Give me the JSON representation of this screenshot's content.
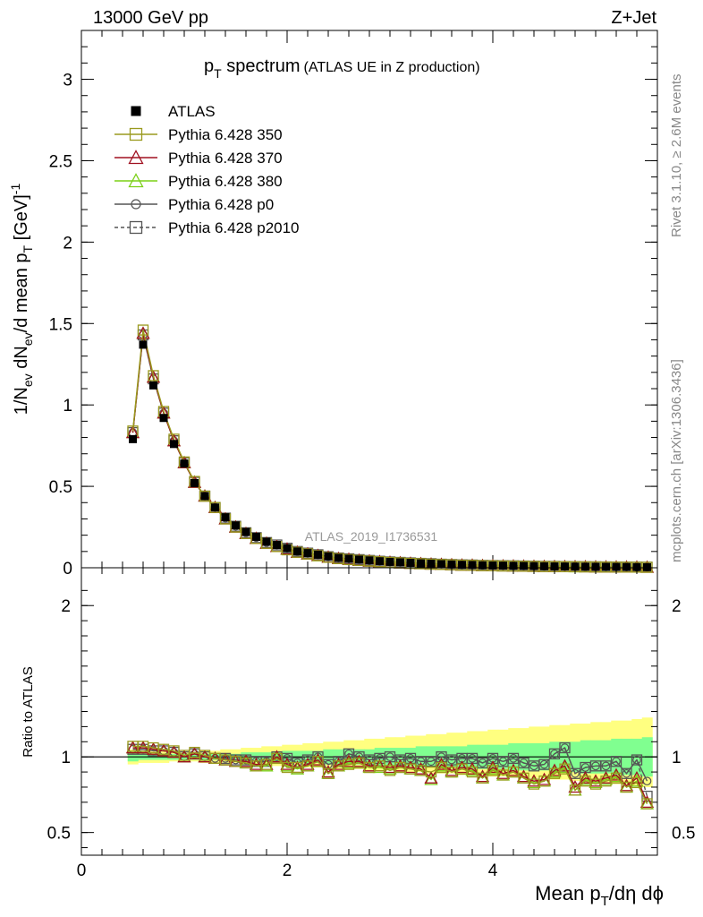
{
  "header": {
    "left": "13000 GeV pp",
    "right": "Z+Jet"
  },
  "side_labels": {
    "rivet": "Rivet 3.1.10, ≥ 2.6M events",
    "mcplots": "mcplots.cern.ch [arXiv:1306.3436]"
  },
  "chart_data": [
    {
      "type": "scatter",
      "title_main": "p",
      "title_sub": "T",
      "title_rest": " spectrum",
      "title_note": "(ATLAS UE in Z production)",
      "watermark": "ATLAS_2019_I1736531",
      "ylabel": "1/N_ev dN_ev/d mean p_T [GeV]^-1",
      "xlim": [
        0,
        5.6
      ],
      "ylim": [
        0,
        3.3
      ],
      "yticks": [
        "0",
        "0.5",
        "1",
        "1.5",
        "2",
        "2.5",
        "3"
      ],
      "x": [
        0.5,
        0.6,
        0.7,
        0.8,
        0.9,
        1.0,
        1.1,
        1.2,
        1.3,
        1.4,
        1.5,
        1.6,
        1.7,
        1.8,
        1.9,
        2.0,
        2.1,
        2.2,
        2.3,
        2.4,
        2.5,
        2.6,
        2.7,
        2.8,
        2.9,
        3.0,
        3.1,
        3.2,
        3.3,
        3.4,
        3.5,
        3.6,
        3.7,
        3.8,
        3.9,
        4.0,
        4.1,
        4.2,
        4.3,
        4.4,
        4.5,
        4.6,
        4.7,
        4.8,
        4.9,
        5.0,
        5.1,
        5.2,
        5.3,
        5.4,
        5.5
      ],
      "series": [
        {
          "name": "ATLAS",
          "marker": "filled-square",
          "color": "#000000",
          "values": [
            0.79,
            1.37,
            1.12,
            0.92,
            0.76,
            0.64,
            0.52,
            0.44,
            0.37,
            0.31,
            0.26,
            0.22,
            0.19,
            0.16,
            0.14,
            0.12,
            0.1,
            0.09,
            0.08,
            0.07,
            0.06,
            0.055,
            0.05,
            0.045,
            0.04,
            0.036,
            0.033,
            0.03,
            0.027,
            0.025,
            0.022,
            0.02,
            0.018,
            0.017,
            0.015,
            0.014,
            0.013,
            0.012,
            0.011,
            0.01,
            0.009,
            0.008,
            0.0075,
            0.007,
            0.0065,
            0.006,
            0.0055,
            0.005,
            0.0045,
            0.004,
            0.0035
          ]
        },
        {
          "name": "Pythia 6.428 350",
          "marker": "open-square",
          "color": "#9a9a1e",
          "values": [
            0.84,
            1.46,
            1.18,
            0.96,
            0.79,
            0.65,
            0.53,
            0.44,
            0.37,
            0.3,
            0.25,
            0.21,
            0.18,
            0.15,
            0.13,
            0.11,
            0.095,
            0.085,
            0.074,
            0.064,
            0.056,
            0.05,
            0.045,
            0.041,
            0.037,
            0.033,
            0.03,
            0.027,
            0.025,
            0.022,
            0.02,
            0.018,
            0.016,
            0.015,
            0.013,
            0.012,
            0.011,
            0.0105,
            0.0095,
            0.0085,
            0.0075,
            0.007,
            0.0065,
            0.006,
            0.0055,
            0.005,
            0.0046,
            0.0042,
            0.0038,
            0.0034,
            0.003
          ]
        },
        {
          "name": "Pythia 6.428 370",
          "marker": "open-triangle",
          "color": "#a01020",
          "values": [
            0.83,
            1.44,
            1.17,
            0.95,
            0.78,
            0.645,
            0.525,
            0.44,
            0.37,
            0.3,
            0.25,
            0.21,
            0.18,
            0.15,
            0.13,
            0.115,
            0.095,
            0.085,
            0.075,
            0.065,
            0.057,
            0.052,
            0.046,
            0.041,
            0.037,
            0.033,
            0.03,
            0.027,
            0.025,
            0.022,
            0.02,
            0.018,
            0.016,
            0.015,
            0.013,
            0.012,
            0.011,
            0.0105,
            0.0095,
            0.0085,
            0.0077,
            0.0072,
            0.0067,
            0.006,
            0.0057,
            0.0052,
            0.0048,
            0.0044,
            0.004,
            0.0036,
            0.0031
          ]
        },
        {
          "name": "Pythia 6.428 380",
          "marker": "open-triangle",
          "color": "#7bd017",
          "values": [
            0.83,
            1.44,
            1.17,
            0.95,
            0.78,
            0.645,
            0.525,
            0.44,
            0.37,
            0.3,
            0.25,
            0.21,
            0.18,
            0.15,
            0.13,
            0.113,
            0.094,
            0.084,
            0.074,
            0.064,
            0.056,
            0.051,
            0.045,
            0.041,
            0.037,
            0.033,
            0.03,
            0.027,
            0.025,
            0.022,
            0.02,
            0.018,
            0.016,
            0.015,
            0.013,
            0.012,
            0.011,
            0.0103,
            0.0093,
            0.0083,
            0.0075,
            0.007,
            0.0065,
            0.0058,
            0.0055,
            0.005,
            0.0046,
            0.0042,
            0.0038,
            0.0034,
            0.003
          ]
        },
        {
          "name": "Pythia 6.428 p0",
          "marker": "open-circle",
          "color": "#555555",
          "values": [
            0.83,
            1.43,
            1.16,
            0.95,
            0.78,
            0.645,
            0.525,
            0.44,
            0.37,
            0.305,
            0.255,
            0.215,
            0.185,
            0.155,
            0.14,
            0.12,
            0.1,
            0.09,
            0.08,
            0.068,
            0.06,
            0.055,
            0.05,
            0.045,
            0.04,
            0.036,
            0.033,
            0.03,
            0.027,
            0.025,
            0.022,
            0.02,
            0.018,
            0.017,
            0.015,
            0.014,
            0.013,
            0.012,
            0.011,
            0.01,
            0.009,
            0.0085,
            0.0075,
            0.0068,
            0.0063,
            0.006,
            0.0055,
            0.0049,
            0.0044,
            0.004,
            0.0035
          ]
        },
        {
          "name": "Pythia 6.428 p2010",
          "marker": "open-square-dashed",
          "color": "#555555",
          "values": [
            0.83,
            1.43,
            1.16,
            0.95,
            0.78,
            0.645,
            0.525,
            0.44,
            0.37,
            0.305,
            0.255,
            0.215,
            0.185,
            0.155,
            0.14,
            0.12,
            0.1,
            0.09,
            0.08,
            0.068,
            0.06,
            0.055,
            0.05,
            0.045,
            0.04,
            0.036,
            0.033,
            0.03,
            0.027,
            0.025,
            0.022,
            0.02,
            0.018,
            0.017,
            0.015,
            0.014,
            0.013,
            0.012,
            0.011,
            0.01,
            0.009,
            0.0085,
            0.0075,
            0.0068,
            0.0063,
            0.006,
            0.0055,
            0.0049,
            0.0044,
            0.004,
            0.0035
          ]
        }
      ]
    },
    {
      "type": "scatter",
      "ylabel": "Ratio to ATLAS",
      "xlabel": "Mean p_T/dη dϕ",
      "xlim": [
        0,
        5.6
      ],
      "ylim": [
        0.35,
        2.25
      ],
      "xticks": [
        "0",
        "2",
        "4"
      ],
      "yticks": [
        "0.5",
        "1",
        "2"
      ],
      "x": [
        0.5,
        0.6,
        0.7,
        0.8,
        0.9,
        1.0,
        1.1,
        1.2,
        1.3,
        1.4,
        1.5,
        1.6,
        1.7,
        1.8,
        1.9,
        2.0,
        2.1,
        2.2,
        2.3,
        2.4,
        2.5,
        2.6,
        2.7,
        2.8,
        2.9,
        3.0,
        3.1,
        3.2,
        3.3,
        3.4,
        3.5,
        3.6,
        3.7,
        3.8,
        3.9,
        4.0,
        4.1,
        4.2,
        4.3,
        4.4,
        4.5,
        4.6,
        4.7,
        4.8,
        4.9,
        5.0,
        5.1,
        5.2,
        5.3,
        5.4,
        5.5
      ],
      "bands": [
        {
          "name": "stat+syst",
          "color": "#ffff80",
          "lo": [
            0.95,
            0.96,
            0.96,
            0.96,
            0.97,
            0.97,
            0.97,
            0.96,
            0.96,
            0.96,
            0.96,
            0.95,
            0.95,
            0.95,
            0.94,
            0.94,
            0.94,
            0.93,
            0.93,
            0.93,
            0.92,
            0.92,
            0.92,
            0.91,
            0.91,
            0.91,
            0.9,
            0.9,
            0.9,
            0.89,
            0.89,
            0.89,
            0.88,
            0.88,
            0.88,
            0.87,
            0.87,
            0.87,
            0.86,
            0.86,
            0.86,
            0.85,
            0.85,
            0.84,
            0.84,
            0.83,
            0.83,
            0.82,
            0.82,
            0.81,
            0.8
          ],
          "hi": [
            1.05,
            1.04,
            1.04,
            1.04,
            1.03,
            1.03,
            1.03,
            1.04,
            1.04,
            1.05,
            1.05,
            1.06,
            1.06,
            1.07,
            1.07,
            1.08,
            1.08,
            1.09,
            1.09,
            1.1,
            1.1,
            1.11,
            1.11,
            1.12,
            1.12,
            1.13,
            1.13,
            1.14,
            1.14,
            1.15,
            1.15,
            1.16,
            1.16,
            1.17,
            1.17,
            1.18,
            1.18,
            1.19,
            1.19,
            1.2,
            1.2,
            1.21,
            1.21,
            1.22,
            1.22,
            1.23,
            1.23,
            1.24,
            1.24,
            1.25,
            1.26
          ]
        },
        {
          "name": "stat",
          "color": "#80ff90",
          "lo": [
            0.97,
            0.98,
            0.98,
            0.98,
            0.98,
            0.98,
            0.98,
            0.98,
            0.98,
            0.98,
            0.98,
            0.97,
            0.97,
            0.97,
            0.97,
            0.96,
            0.96,
            0.96,
            0.96,
            0.95,
            0.95,
            0.95,
            0.95,
            0.95,
            0.94,
            0.94,
            0.94,
            0.94,
            0.93,
            0.93,
            0.93,
            0.93,
            0.93,
            0.92,
            0.92,
            0.92,
            0.92,
            0.91,
            0.91,
            0.91,
            0.91,
            0.9,
            0.9,
            0.9,
            0.89,
            0.89,
            0.89,
            0.88,
            0.88,
            0.88,
            0.87
          ],
          "hi": [
            1.03,
            1.02,
            1.02,
            1.02,
            1.02,
            1.02,
            1.02,
            1.02,
            1.02,
            1.02,
            1.02,
            1.03,
            1.03,
            1.03,
            1.03,
            1.04,
            1.04,
            1.04,
            1.04,
            1.05,
            1.05,
            1.05,
            1.05,
            1.05,
            1.06,
            1.06,
            1.06,
            1.06,
            1.07,
            1.07,
            1.07,
            1.07,
            1.07,
            1.08,
            1.08,
            1.08,
            1.08,
            1.09,
            1.09,
            1.09,
            1.09,
            1.1,
            1.1,
            1.1,
            1.11,
            1.11,
            1.11,
            1.12,
            1.12,
            1.12,
            1.13
          ]
        }
      ],
      "series": [
        {
          "name": "Pythia 6.428 350",
          "marker": "open-square",
          "color": "#9a9a1e",
          "values": [
            1.07,
            1.07,
            1.06,
            1.05,
            1.04,
            1.01,
            1.03,
            1.01,
            0.99,
            0.98,
            0.97,
            0.96,
            0.94,
            0.95,
            0.99,
            0.93,
            0.93,
            0.94,
            0.97,
            0.89,
            0.94,
            0.95,
            0.96,
            0.93,
            0.94,
            0.91,
            0.93,
            0.92,
            0.91,
            0.9,
            0.93,
            0.9,
            0.92,
            0.9,
            0.86,
            0.91,
            0.88,
            0.9,
            0.86,
            0.82,
            0.84,
            0.89,
            0.92,
            0.78,
            0.84,
            0.82,
            0.84,
            0.86,
            0.8,
            0.83,
            0.69
          ]
        },
        {
          "name": "Pythia 6.428 370",
          "marker": "open-triangle",
          "color": "#a01020",
          "values": [
            1.06,
            1.06,
            1.05,
            1.04,
            1.03,
            1.0,
            1.02,
            1.0,
            0.99,
            0.98,
            0.97,
            0.97,
            0.95,
            0.95,
            1.0,
            0.95,
            0.93,
            0.95,
            0.98,
            0.9,
            0.95,
            0.97,
            0.97,
            0.94,
            0.94,
            0.93,
            0.94,
            0.93,
            0.92,
            0.86,
            0.95,
            0.91,
            0.93,
            0.92,
            0.87,
            0.93,
            0.89,
            0.91,
            0.87,
            0.84,
            0.85,
            0.91,
            0.94,
            0.8,
            0.86,
            0.84,
            0.86,
            0.88,
            0.81,
            0.86,
            0.7
          ]
        },
        {
          "name": "Pythia 6.428 380",
          "marker": "open-triangle",
          "color": "#7bd017",
          "values": [
            1.06,
            1.06,
            1.05,
            1.04,
            1.03,
            1.0,
            1.02,
            1.0,
            0.99,
            0.98,
            0.97,
            0.96,
            0.94,
            0.94,
            0.99,
            0.94,
            0.92,
            0.94,
            0.97,
            0.89,
            0.94,
            0.96,
            0.96,
            0.93,
            0.93,
            0.92,
            0.93,
            0.92,
            0.91,
            0.85,
            0.94,
            0.9,
            0.92,
            0.91,
            0.86,
            0.92,
            0.88,
            0.9,
            0.86,
            0.83,
            0.84,
            0.9,
            0.93,
            0.78,
            0.85,
            0.83,
            0.85,
            0.87,
            0.8,
            0.84,
            0.69
          ]
        },
        {
          "name": "Pythia 6.428 p0",
          "marker": "open-circle",
          "color": "#555555",
          "values": [
            1.05,
            1.05,
            1.04,
            1.04,
            1.03,
            1.0,
            1.02,
            1.0,
            0.99,
            0.99,
            0.98,
            0.98,
            0.97,
            0.97,
            1.0,
            0.99,
            0.96,
            0.98,
            1.0,
            0.95,
            0.97,
            1.02,
            1.0,
            0.98,
            0.99,
            1.0,
            0.98,
            0.99,
            0.97,
            0.97,
            1.0,
            0.98,
            0.99,
            0.99,
            0.96,
            0.99,
            0.97,
            0.99,
            0.96,
            0.94,
            0.95,
            1.02,
            1.06,
            0.89,
            0.93,
            0.94,
            0.94,
            0.97,
            0.89,
            0.98,
            0.84
          ]
        },
        {
          "name": "Pythia 6.428 p2010",
          "marker": "open-square-dashed",
          "color": "#555555",
          "values": [
            1.05,
            1.05,
            1.04,
            1.04,
            1.03,
            1.0,
            1.02,
            1.0,
            0.99,
            0.99,
            0.98,
            0.98,
            0.97,
            0.97,
            1.0,
            0.99,
            0.96,
            0.98,
            1.0,
            0.95,
            0.97,
            1.02,
            1.0,
            0.98,
            0.99,
            1.0,
            0.98,
            0.99,
            0.97,
            0.97,
            1.0,
            0.98,
            0.99,
            0.99,
            0.96,
            0.99,
            0.97,
            0.99,
            0.96,
            0.94,
            0.95,
            1.02,
            1.06,
            0.89,
            0.93,
            0.94,
            0.94,
            0.97,
            0.89,
            0.98,
            0.74
          ]
        }
      ]
    }
  ]
}
